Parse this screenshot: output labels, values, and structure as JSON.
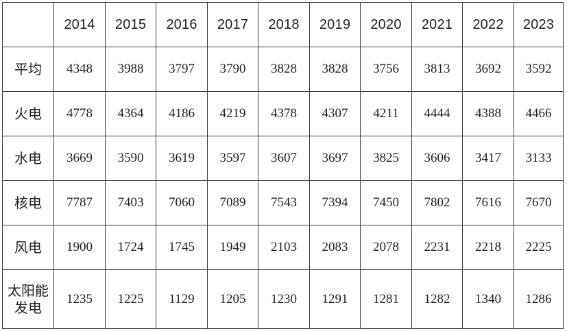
{
  "table": {
    "corner": "",
    "years": [
      "2014",
      "2015",
      "2016",
      "2017",
      "2018",
      "2019",
      "2020",
      "2021",
      "2022",
      "2023"
    ],
    "rows": [
      {
        "label": "平均",
        "values": [
          "4348",
          "3988",
          "3797",
          "3790",
          "3828",
          "3828",
          "3756",
          "3813",
          "3692",
          "3592"
        ]
      },
      {
        "label": "火电",
        "values": [
          "4778",
          "4364",
          "4186",
          "4219",
          "4378",
          "4307",
          "4211",
          "4444",
          "4388",
          "4466"
        ]
      },
      {
        "label": "水电",
        "values": [
          "3669",
          "3590",
          "3619",
          "3597",
          "3607",
          "3697",
          "3825",
          "3606",
          "3417",
          "3133"
        ]
      },
      {
        "label": "核电",
        "values": [
          "7787",
          "7403",
          "7060",
          "7089",
          "7543",
          "7394",
          "7450",
          "7802",
          "7616",
          "7670"
        ]
      },
      {
        "label": "风电",
        "values": [
          "1900",
          "1724",
          "1745",
          "1949",
          "2103",
          "2083",
          "2078",
          "2231",
          "2218",
          "2225"
        ]
      },
      {
        "label": "太阳能发电",
        "label_lines": [
          "太阳能",
          "发电"
        ],
        "values": [
          "1235",
          "1225",
          "1129",
          "1205",
          "1230",
          "1291",
          "1281",
          "1282",
          "1340",
          "1286"
        ]
      }
    ]
  }
}
